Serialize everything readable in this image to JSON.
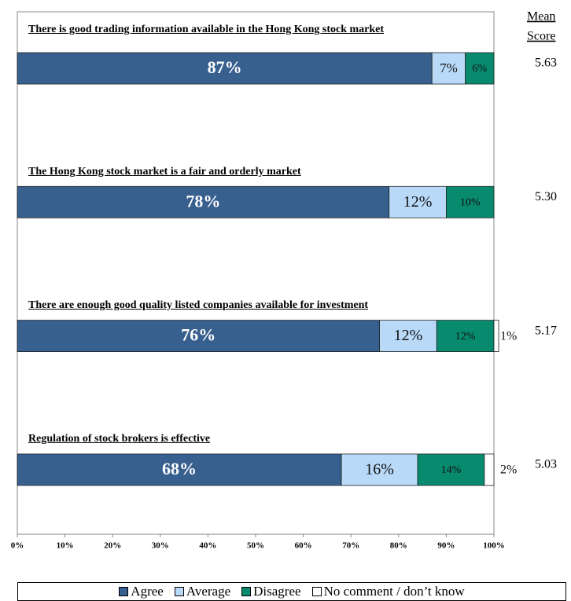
{
  "chart_data": {
    "type": "stacked-bar-horizontal",
    "categories": [
      "There is good trading information available in the Hong Kong stock market",
      "The Hong Kong stock market is a fair and orderly market",
      "There are enough good quality listed companies available for investment",
      "Regulation of stock brokers is effective"
    ],
    "series": [
      {
        "name": "Agree",
        "color": "#37608f",
        "values": [
          87,
          78,
          76,
          68
        ],
        "value_labels": [
          "87%",
          "78%",
          "76%",
          "68%"
        ]
      },
      {
        "name": "Average",
        "color": "#b8d9f8",
        "values": [
          7,
          12,
          12,
          16
        ],
        "value_labels": [
          "7%",
          "12%",
          "12%",
          "16%"
        ]
      },
      {
        "name": "Disagree",
        "color": "#088a6f",
        "values": [
          6,
          10,
          12,
          14
        ],
        "value_labels": [
          "6%",
          "10%",
          "12%",
          "14%"
        ]
      },
      {
        "name": "No comment / don’t know",
        "color": "#ffffff",
        "values": [
          0,
          0,
          1,
          2
        ],
        "value_labels": [
          null,
          null,
          "1%",
          "2%"
        ]
      }
    ],
    "xlim": [
      0,
      100
    ],
    "xticks": [
      {
        "value": 0,
        "label": "0%"
      },
      {
        "value": 10,
        "label": "10%"
      },
      {
        "value": 20,
        "label": "20%"
      },
      {
        "value": 30,
        "label": "30%"
      },
      {
        "value": 40,
        "label": "40%"
      },
      {
        "value": 50,
        "label": "50%"
      },
      {
        "value": 60,
        "label": "60%"
      },
      {
        "value": 70,
        "label": "70%"
      },
      {
        "value": 80,
        "label": "80%"
      },
      {
        "value": 90,
        "label": "90%"
      },
      {
        "value": 100,
        "label": "100%"
      }
    ],
    "mean_score": {
      "title": [
        "Mean",
        "Score"
      ],
      "values": [
        5.63,
        5.3,
        5.17,
        5.03
      ],
      "value_labels": [
        "5.63",
        "5.30",
        "5.17",
        "5.03"
      ]
    },
    "legend": "bottom"
  }
}
